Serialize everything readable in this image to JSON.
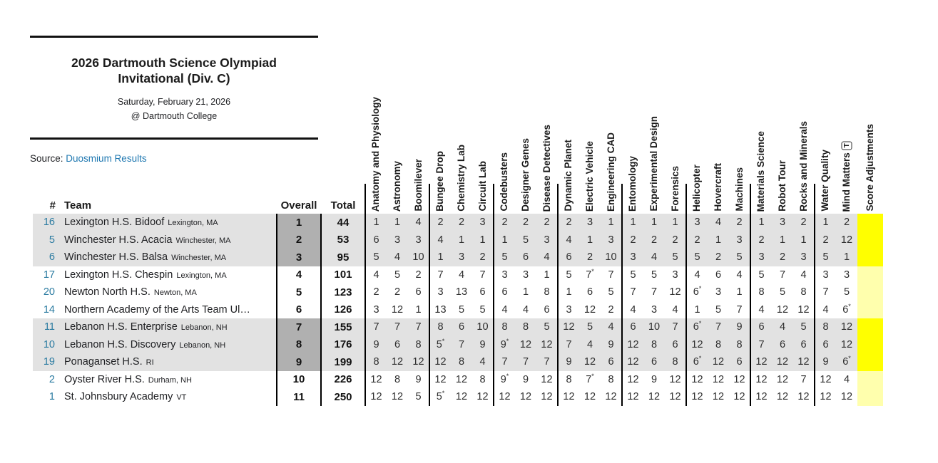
{
  "header": {
    "title_line1": "2026 Dartmouth Science Olympiad",
    "title_line2": "Invitational (Div. C)",
    "date": "Saturday, February 21, 2026",
    "location": "@ Dartmouth College",
    "source_label": "Source:",
    "source_link": "Duosmium Results"
  },
  "colors": {
    "link": "#1f78b1",
    "team_number": "#2b7ba1",
    "row_stripe": "#e2e2e2",
    "overall_stripe": "#b0b0b0",
    "adjustment_bright": "#ffff00",
    "adjustment_pale": "#ffffad",
    "rule": "#111111",
    "text": "#202124"
  },
  "table": {
    "columns": {
      "number": "#",
      "team": "Team",
      "overall": "Overall",
      "total": "Total"
    },
    "event_columns": [
      {
        "label": "Anatomy and Physiology",
        "group_start": true
      },
      {
        "label": "Astronomy"
      },
      {
        "label": "Boomilever"
      },
      {
        "label": "Bungee Drop",
        "group_start": true
      },
      {
        "label": "Chemistry Lab"
      },
      {
        "label": "Circuit Lab"
      },
      {
        "label": "Codebusters",
        "group_start": true
      },
      {
        "label": "Designer Genes"
      },
      {
        "label": "Disease Detectives"
      },
      {
        "label": "Dynamic Planet",
        "group_start": true
      },
      {
        "label": "Electric Vehicle"
      },
      {
        "label": "Engineering CAD"
      },
      {
        "label": "Entomology",
        "group_start": true
      },
      {
        "label": "Experimental Design"
      },
      {
        "label": "Forensics"
      },
      {
        "label": "Helicopter",
        "group_start": true
      },
      {
        "label": "Hovercraft"
      },
      {
        "label": "Machines"
      },
      {
        "label": "Materials Science",
        "group_start": true
      },
      {
        "label": "Robot Tour"
      },
      {
        "label": "Rocks and Minerals"
      },
      {
        "label": "Water Quality",
        "group_start": true
      },
      {
        "label": "Mind Matters",
        "trial_marker": "T"
      },
      {
        "label": "Score Adjustments",
        "adjustments": true
      }
    ],
    "rows": [
      {
        "number": "16",
        "team": "Lexington H.S. Bidoof",
        "location": "Lexington, MA",
        "overall": "1",
        "total": "44",
        "shaded": true,
        "scores": [
          "1",
          "1",
          "4",
          "2",
          "2",
          "3",
          "2",
          "2",
          "2",
          "2",
          "3",
          "1",
          "1",
          "1",
          "1",
          "3",
          "4",
          "2",
          "1",
          "3",
          "2",
          "1",
          "2",
          ""
        ]
      },
      {
        "number": "5",
        "team": "Winchester H.S. Acacia",
        "location": "Winchester, MA",
        "overall": "2",
        "total": "53",
        "shaded": true,
        "scores": [
          "6",
          "3",
          "3",
          "4",
          "1",
          "1",
          "1",
          "5",
          "3",
          "4",
          "1",
          "3",
          "2",
          "2",
          "2",
          "2",
          "1",
          "3",
          "2",
          "1",
          "1",
          "2",
          "12",
          ""
        ]
      },
      {
        "number": "6",
        "team": "Winchester H.S. Balsa",
        "location": "Winchester, MA",
        "overall": "3",
        "total": "95",
        "shaded": true,
        "scores": [
          "5",
          "4",
          "10",
          "1",
          "3",
          "2",
          "5",
          "6",
          "4",
          "6",
          "2",
          "10",
          "3",
          "4",
          "5",
          "5",
          "2",
          "5",
          "3",
          "2",
          "3",
          "5",
          "1",
          ""
        ]
      },
      {
        "number": "17",
        "team": "Lexington H.S. Chespin",
        "location": "Lexington, MA",
        "overall": "4",
        "total": "101",
        "shaded": false,
        "scores": [
          "4",
          "5",
          "2",
          "7",
          "4",
          "7",
          "3",
          "3",
          "1",
          "5",
          "7*",
          "7",
          "5",
          "5",
          "3",
          "4",
          "6",
          "4",
          "5",
          "7",
          "4",
          "3",
          "3",
          ""
        ]
      },
      {
        "number": "20",
        "team": "Newton North H.S.",
        "location": "Newton, MA",
        "overall": "5",
        "total": "123",
        "shaded": false,
        "scores": [
          "2",
          "2",
          "6",
          "3",
          "13",
          "6",
          "6",
          "1",
          "8",
          "1",
          "6",
          "5",
          "7",
          "7",
          "12",
          "6*",
          "3",
          "1",
          "8",
          "5",
          "8",
          "7",
          "5",
          ""
        ]
      },
      {
        "number": "14",
        "team": "Northern Academy of the Arts Team Ul…",
        "location": "",
        "overall": "6",
        "total": "126",
        "shaded": false,
        "scores": [
          "3",
          "12",
          "1",
          "13",
          "5",
          "5",
          "4",
          "4",
          "6",
          "3",
          "12",
          "2",
          "4",
          "3",
          "4",
          "1",
          "5",
          "7",
          "4",
          "12",
          "12",
          "4",
          "6*",
          ""
        ]
      },
      {
        "number": "11",
        "team": "Lebanon H.S. Enterprise",
        "location": "Lebanon, NH",
        "overall": "7",
        "total": "155",
        "shaded": true,
        "scores": [
          "7",
          "7",
          "7",
          "8",
          "6",
          "10",
          "8",
          "8",
          "5",
          "12",
          "5",
          "4",
          "6",
          "10",
          "7",
          "6*",
          "7",
          "9",
          "6",
          "4",
          "5",
          "8",
          "12",
          ""
        ]
      },
      {
        "number": "10",
        "team": "Lebanon H.S. Discovery",
        "location": "Lebanon, NH",
        "overall": "8",
        "total": "176",
        "shaded": true,
        "scores": [
          "9",
          "6",
          "8",
          "5*",
          "7",
          "9",
          "9*",
          "12",
          "12",
          "7",
          "4",
          "9",
          "12",
          "8",
          "6",
          "12",
          "8",
          "8",
          "7",
          "6",
          "6",
          "6",
          "12",
          ""
        ]
      },
      {
        "number": "19",
        "team": "Ponaganset H.S.",
        "location": "RI",
        "overall": "9",
        "total": "199",
        "shaded": true,
        "scores": [
          "8",
          "12",
          "12",
          "12",
          "8",
          "4",
          "7",
          "7",
          "7",
          "9",
          "12",
          "6",
          "12",
          "6",
          "8",
          "6*",
          "12",
          "6",
          "12",
          "12",
          "12",
          "9",
          "6*",
          ""
        ]
      },
      {
        "number": "2",
        "team": "Oyster River H.S.",
        "location": "Durham, NH",
        "overall": "10",
        "total": "226",
        "shaded": false,
        "scores": [
          "12",
          "8",
          "9",
          "12",
          "12",
          "8",
          "9*",
          "9",
          "12",
          "8",
          "7*",
          "8",
          "12",
          "9",
          "12",
          "12",
          "12",
          "12",
          "12",
          "12",
          "7",
          "12",
          "4",
          ""
        ]
      },
      {
        "number": "1",
        "team": "St. Johnsbury Academy",
        "location": "VT",
        "overall": "11",
        "total": "250",
        "shaded": false,
        "scores": [
          "12",
          "12",
          "5",
          "5*",
          "12",
          "12",
          "12",
          "12",
          "12",
          "12",
          "12",
          "12",
          "12",
          "12",
          "12",
          "12",
          "12",
          "12",
          "12",
          "12",
          "12",
          "12",
          "12",
          ""
        ]
      }
    ]
  }
}
